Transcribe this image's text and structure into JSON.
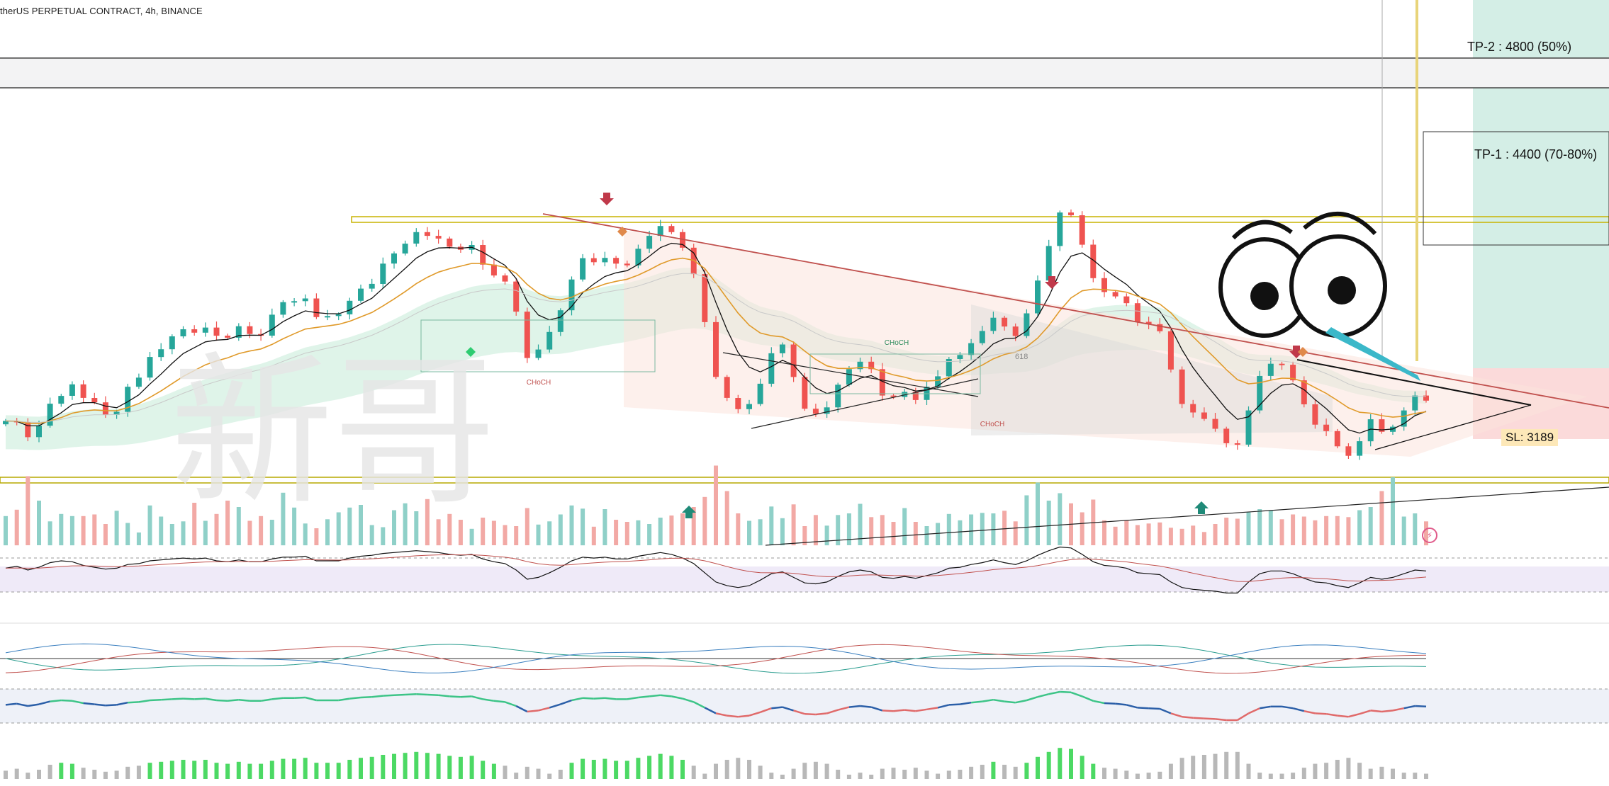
{
  "title": "therUS PERPETUAL CONTRACT, 4h, BINANCE",
  "annotations": {
    "tp2": "TP-2 : 4800 (50%)",
    "tp1": "TP-1 : 4400 (70-80%)",
    "sl": "SL: 3189",
    "choch": [
      "CHoCH",
      "CHoCH",
      "CHoCH"
    ],
    "fib": "618"
  },
  "watermark": "新哥",
  "colors": {
    "up": "#26a69a",
    "down": "#ef5350",
    "vol_up": "#8fd0c8",
    "vol_down": "#f2a9a5",
    "ema_fast": "#111111",
    "ema_slow": "#e09a2a",
    "trend_red": "#c0504d",
    "tp_zone": "#cfece4",
    "sl_zone": "#fbd9d9",
    "osc_green": "#4cd964",
    "osc_gray": "#b8b8b8"
  },
  "icons": [
    "sell-arrow-icon",
    "buy-arrow-icon",
    "diamond-signal-icon",
    "flash-icon",
    "cartoon-eyes-icon"
  ],
  "chart_data": {
    "type": "candlestick",
    "title": "therUS PERPETUAL CONTRACT, 4h, BINANCE",
    "levels": [
      {
        "label": "TP-2 : 4800 (50%)",
        "price": 4800
      },
      {
        "label": "TP-1 : 4400 (70-80%)",
        "price": 4400
      },
      {
        "label": "SL: 3189",
        "price": 3189
      }
    ],
    "close": [
      3300,
      3296,
      3252,
      3286,
      3351,
      3374,
      3408,
      3368,
      3355,
      3318,
      3327,
      3401,
      3428,
      3489,
      3512,
      3550,
      3571,
      3561,
      3576,
      3552,
      3546,
      3580,
      3557,
      3552,
      3614,
      3651,
      3654,
      3662,
      3607,
      3610,
      3615,
      3655,
      3691,
      3705,
      3765,
      3795,
      3824,
      3858,
      3847,
      3839,
      3815,
      3806,
      3820,
      3762,
      3730,
      3712,
      3623,
      3486,
      3511,
      3563,
      3627,
      3718,
      3781,
      3769,
      3782,
      3765,
      3760,
      3809,
      3847,
      3876,
      3858,
      3812,
      3734,
      3592,
      3430,
      3368,
      3335,
      3350,
      3410,
      3500,
      3526,
      3430,
      3336,
      3321,
      3340,
      3407,
      3453,
      3475,
      3453,
      3375,
      3371,
      3386,
      3362,
      3401,
      3432,
      3483,
      3495,
      3530,
      3566,
      3605,
      3579,
      3551,
      3618,
      3715,
      3817,
      3916,
      3908,
      3821,
      3722,
      3681,
      3668,
      3648,
      3593,
      3586,
      3565,
      3452,
      3350,
      3325,
      3306,
      3277,
      3234,
      3230,
      3331,
      3433,
      3469,
      3466,
      3420,
      3349,
      3289,
      3270,
      3225,
      3197,
      3240,
      3305,
      3268,
      3283,
      3331,
      3375,
      3360
    ],
    "volume": [
      55,
      67,
      130,
      84,
      45,
      59,
      55,
      55,
      58,
      40,
      65,
      42,
      24,
      75,
      54,
      40,
      45,
      80,
      46,
      59,
      84,
      72,
      46,
      55,
      48,
      99,
      71,
      41,
      32,
      49,
      62,
      71,
      76,
      38,
      34,
      66,
      79,
      64,
      87,
      49,
      59,
      48,
      31,
      52,
      46,
      38,
      36,
      70,
      39,
      45,
      58,
      75,
      69,
      35,
      68,
      48,
      44,
      47,
      40,
      52,
      56,
      60,
      72,
      91,
      150,
      102,
      60,
      46,
      49,
      73,
      51,
      77,
      36,
      57,
      37,
      57,
      60,
      78,
      53,
      57,
      44,
      70,
      44,
      36,
      42,
      59,
      47,
      58,
      61,
      60,
      65,
      45,
      94,
      118,
      84,
      98,
      79,
      62,
      86,
      47,
      35,
      47,
      38,
      41,
      43,
      33,
      31,
      37,
      25,
      40,
      52,
      50,
      62,
      68,
      66,
      49,
      58,
      54,
      47,
      55,
      55,
      53,
      66,
      72,
      102,
      128,
      54,
      60,
      45
    ],
    "rsi": [
      52,
      54,
      50,
      53,
      58,
      60,
      59,
      55,
      53,
      51,
      52,
      56,
      57,
      60,
      61,
      62,
      63,
      62,
      63,
      60,
      59,
      61,
      59,
      59,
      62,
      64,
      64,
      65,
      60,
      60,
      60,
      63,
      65,
      66,
      68,
      69,
      70,
      71,
      70,
      69,
      67,
      66,
      67,
      62,
      59,
      57,
      50,
      40,
      42,
      47,
      53,
      60,
      64,
      63,
      64,
      62,
      62,
      65,
      67,
      69,
      67,
      63,
      57,
      47,
      37,
      33,
      31,
      33,
      39,
      46,
      48,
      42,
      36,
      35,
      37,
      43,
      48,
      50,
      48,
      42,
      41,
      43,
      41,
      44,
      47,
      52,
      53,
      56,
      58,
      61,
      58,
      56,
      60,
      66,
      71,
      75,
      74,
      67,
      59,
      55,
      54,
      52,
      47,
      46,
      45,
      37,
      31,
      29,
      28,
      27,
      25,
      25,
      37,
      46,
      49,
      49,
      46,
      41,
      37,
      36,
      33,
      31,
      36,
      42,
      40,
      42,
      46,
      50,
      49
    ],
    "ylim": [
      3100,
      4000
    ]
  }
}
